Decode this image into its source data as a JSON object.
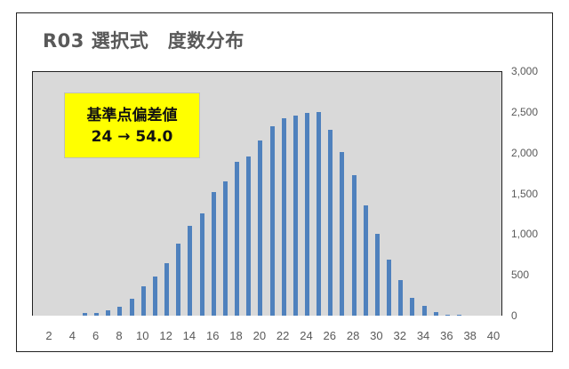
{
  "chart_data": {
    "type": "bar",
    "title": "R03 選択式　度数分布",
    "xlabel": "",
    "ylabel": "",
    "ylim": [
      0,
      3000
    ],
    "y_ticks": [
      "0",
      "500",
      "1,000",
      "1,500",
      "2,000",
      "2,500",
      "3,000"
    ],
    "x_ticks": [
      "2",
      "4",
      "6",
      "8",
      "10",
      "12",
      "14",
      "16",
      "18",
      "20",
      "22",
      "24",
      "26",
      "28",
      "30",
      "32",
      "34",
      "36",
      "38",
      "40"
    ],
    "y_axis_position": "right",
    "grid": false,
    "legend": null,
    "categories": [
      1,
      2,
      3,
      4,
      5,
      6,
      7,
      8,
      9,
      10,
      11,
      12,
      13,
      14,
      15,
      16,
      17,
      18,
      19,
      20,
      21,
      22,
      23,
      24,
      25,
      26,
      27,
      28,
      29,
      30,
      31,
      32,
      33,
      34,
      35,
      36,
      37,
      38,
      39,
      40
    ],
    "values": [
      0,
      0,
      0,
      0,
      30,
      35,
      70,
      110,
      210,
      355,
      475,
      640,
      880,
      1100,
      1255,
      1515,
      1650,
      1890,
      1955,
      2150,
      2325,
      2420,
      2455,
      2490,
      2495,
      2280,
      2005,
      1725,
      1350,
      1005,
      690,
      440,
      220,
      120,
      40,
      15,
      5,
      0,
      0,
      0
    ],
    "bar_color": "#4f81bd",
    "plot_background": "#d9d9d9",
    "annotation": {
      "line1": "基準点偏差値",
      "line2": "24 → 54.0",
      "background": "#ffff00"
    }
  }
}
